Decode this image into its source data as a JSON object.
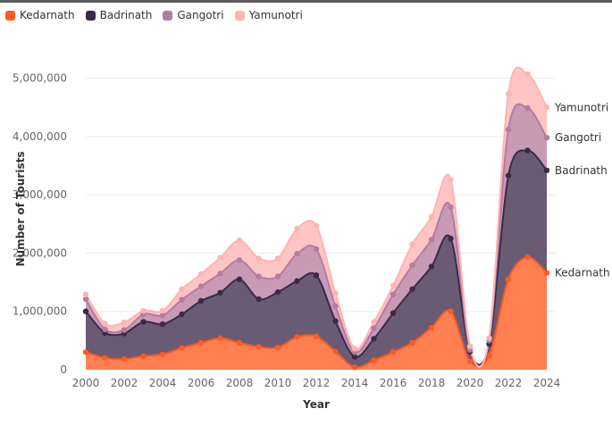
{
  "chart_data": {
    "type": "area",
    "stacked": true,
    "smooth": true,
    "xlabel": "Year",
    "ylabel": "Number of Tourists",
    "ylim": [
      0,
      5500000
    ],
    "xlim": [
      2000,
      2024
    ],
    "x_ticks": [
      2000,
      2002,
      2004,
      2006,
      2008,
      2010,
      2012,
      2014,
      2016,
      2018,
      2020,
      2022,
      2024
    ],
    "x_tick_labels": [
      "2000",
      "2002",
      "2004",
      "2006",
      "2008",
      "2010",
      "2012",
      "2014",
      "2016",
      "2018",
      "2020",
      "2022",
      "2024"
    ],
    "y_ticks": [
      0,
      1000000,
      2000000,
      3000000,
      4000000,
      5000000
    ],
    "y_tick_labels": [
      "0",
      "1,000,000",
      "2,000,000",
      "3,000,000",
      "4,000,000",
      "5,000,000"
    ],
    "grid": true,
    "legend_position": "top-left",
    "x": [
      2000,
      2001,
      2002,
      2003,
      2004,
      2005,
      2006,
      2007,
      2008,
      2009,
      2010,
      2011,
      2012,
      2013,
      2014,
      2015,
      2016,
      2017,
      2018,
      2019,
      2020,
      2021,
      2022,
      2023,
      2024
    ],
    "series": [
      {
        "name": "Kedarnath",
        "color": "#FF5A1F",
        "fill": "#FF7F50",
        "values": [
          300000,
          200000,
          180000,
          230000,
          260000,
          370000,
          460000,
          540000,
          460000,
          390000,
          380000,
          560000,
          570000,
          310000,
          40000,
          160000,
          300000,
          460000,
          720000,
          1000000,
          140000,
          240000,
          1550000,
          1930000,
          1660000
        ]
      },
      {
        "name": "Badrinath",
        "color": "#3A2A48",
        "fill": "#6A5B74",
        "values": [
          700000,
          430000,
          440000,
          590000,
          520000,
          580000,
          720000,
          780000,
          1090000,
          820000,
          950000,
          960000,
          1050000,
          520000,
          180000,
          370000,
          670000,
          920000,
          1050000,
          1250000,
          170000,
          200000,
          1780000,
          1830000,
          1760000
        ]
      },
      {
        "name": "Gangotri",
        "color": "#B57BA0",
        "fill": "#C89AB5",
        "values": [
          210000,
          60000,
          60000,
          130000,
          150000,
          250000,
          250000,
          330000,
          330000,
          390000,
          270000,
          470000,
          450000,
          260000,
          80000,
          180000,
          320000,
          410000,
          460000,
          540000,
          30000,
          60000,
          790000,
          730000,
          560000
        ]
      },
      {
        "name": "Yamunotri",
        "color": "#FFB3B3",
        "fill": "#FFC5C5",
        "values": [
          80000,
          100000,
          130000,
          60000,
          80000,
          180000,
          210000,
          270000,
          340000,
          310000,
          310000,
          430000,
          400000,
          220000,
          60000,
          110000,
          150000,
          360000,
          390000,
          470000,
          60000,
          40000,
          610000,
          580000,
          520000
        ]
      }
    ]
  }
}
